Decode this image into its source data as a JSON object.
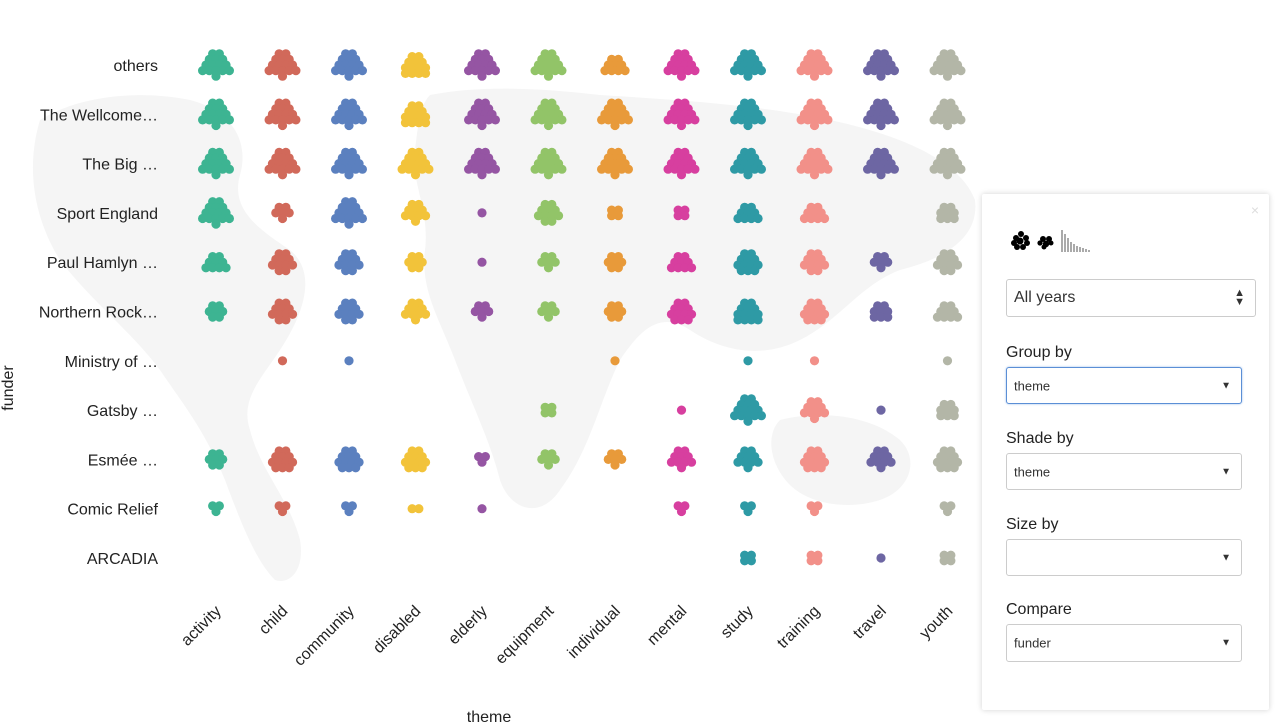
{
  "chart_data": {
    "type": "dot-grid",
    "xlabel": "theme",
    "ylabel": "funder",
    "categories": [
      "activity",
      "child",
      "community",
      "disabled",
      "elderly",
      "equipment",
      "individual",
      "mental",
      "study",
      "training",
      "travel",
      "youth"
    ],
    "rows": [
      "others",
      "The Wellcome…",
      "The Big …",
      "Sport England",
      "Paul Hamlyn …",
      "Northern Rock…",
      "Ministry of …",
      "Gatsby …",
      "Esmée …",
      "Comic Relief",
      "ARCADIA"
    ],
    "counts": [
      [
        15,
        15,
        15,
        13,
        15,
        15,
        9,
        15,
        15,
        15,
        15,
        15
      ],
      [
        15,
        15,
        15,
        13,
        15,
        15,
        15,
        15,
        15,
        15,
        15,
        15
      ],
      [
        15,
        15,
        15,
        15,
        15,
        15,
        15,
        15,
        15,
        15,
        15,
        15
      ],
      [
        15,
        6,
        15,
        10,
        1,
        11,
        4,
        4,
        9,
        9,
        0,
        8
      ],
      [
        9,
        11,
        11,
        7,
        1,
        6,
        7,
        9,
        12,
        11,
        6,
        11
      ],
      [
        7,
        11,
        11,
        10,
        6,
        6,
        7,
        12,
        13,
        12,
        8,
        9
      ],
      [
        0,
        1,
        1,
        0,
        0,
        0,
        1,
        0,
        1,
        1,
        0,
        1
      ],
      [
        0,
        0,
        0,
        0,
        0,
        4,
        0,
        1,
        15,
        10,
        1,
        8
      ],
      [
        7,
        12,
        12,
        12,
        3,
        6,
        6,
        10,
        10,
        12,
        10,
        12
      ],
      [
        3,
        3,
        3,
        2,
        1,
        0,
        0,
        3,
        3,
        3,
        0,
        3
      ],
      [
        0,
        0,
        0,
        0,
        0,
        0,
        0,
        0,
        4,
        4,
        1,
        4
      ]
    ],
    "colors": [
      "#3db492",
      "#d1695a",
      "#5b80bf",
      "#f2c33a",
      "#9555a3",
      "#92c468",
      "#e89a3a",
      "#d73f9f",
      "#2e9aa5",
      "#f29089",
      "#6d66a3",
      "#b3b6a7"
    ],
    "legend": "none"
  },
  "panel": {
    "close_label": "×",
    "view_icons": [
      "bubble-cluster-icon",
      "histogram-icon"
    ],
    "years": {
      "value": "All years",
      "caret": "▲\n▼"
    },
    "group_by": {
      "label": "Group by",
      "value": "theme"
    },
    "shade_by": {
      "label": "Shade by",
      "value": "theme"
    },
    "size_by": {
      "label": "Size by",
      "value": ""
    },
    "compare": {
      "label": "Compare",
      "value": "funder"
    },
    "caret": "▼"
  }
}
